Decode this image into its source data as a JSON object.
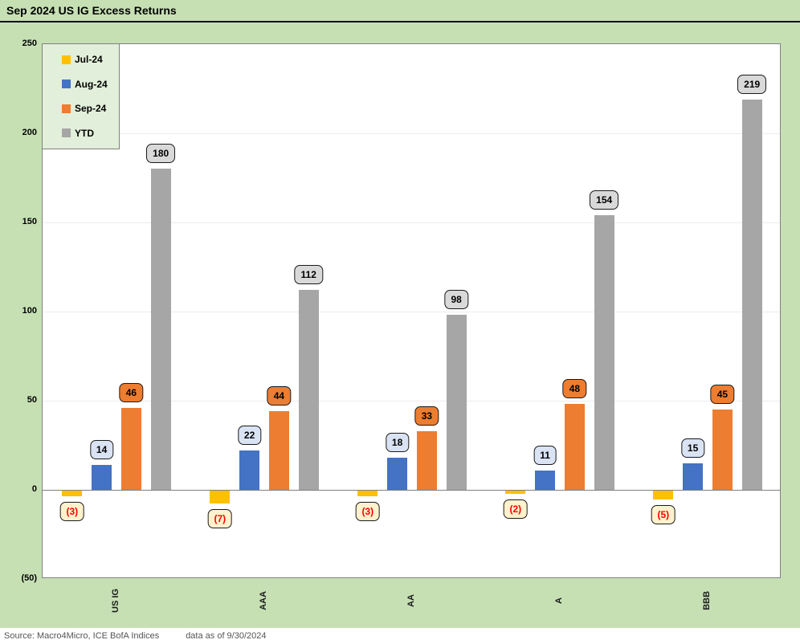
{
  "title": "Sep 2024 US IG Excess Returns",
  "footer": {
    "source": "Source: Macro4Micro, ICE BofA Indices",
    "as_of": "data as of 9/30/2024"
  },
  "colors": {
    "page_background": "#c6e0b4",
    "plot_background": "#ffffff",
    "legend_background": "#e2efda",
    "plot_border": "#808080",
    "gridline": "#ececec",
    "zero_axis": "#7f7f7f",
    "negative_label_text": "#ff0000",
    "negative_label_bg": "#fff2cc"
  },
  "chart_data": {
    "type": "bar",
    "title": "Sep 2024 US IG Excess Returns",
    "categories": [
      "US IG",
      "AAA",
      "AA",
      "A",
      "BBB"
    ],
    "series": [
      {
        "name": "Jul-24",
        "color": "#ffc000",
        "label_bg": "#fff2cc",
        "label_text_color": "#ff0000",
        "values": [
          -3,
          -7,
          -3,
          -2,
          -5
        ],
        "labels": [
          "(3)",
          "(7)",
          "(3)",
          "(2)",
          "(5)"
        ]
      },
      {
        "name": "Aug-24",
        "color": "#4472c4",
        "label_bg": "#dae3f3",
        "label_text_color": "#000000",
        "values": [
          14,
          22,
          18,
          11,
          15
        ],
        "labels": [
          "14",
          "22",
          "18",
          "11",
          "15"
        ]
      },
      {
        "name": "Sep-24",
        "color": "#ed7d31",
        "label_bg": "#ed7d31",
        "label_text_color": "#000000",
        "values": [
          46,
          44,
          33,
          48,
          45
        ],
        "labels": [
          "46",
          "44",
          "33",
          "48",
          "45"
        ]
      },
      {
        "name": "YTD",
        "color": "#a6a6a6",
        "label_bg": "#d9d9d9",
        "label_text_color": "#000000",
        "values": [
          180,
          112,
          98,
          154,
          219
        ],
        "labels": [
          "180",
          "112",
          "98",
          "154",
          "219"
        ]
      }
    ],
    "ylim": [
      -50,
      250
    ],
    "ytick_interval": 50,
    "yticks": [
      250,
      200,
      150,
      100,
      50,
      0,
      -50
    ],
    "ytick_labels": [
      "250",
      "200",
      "150",
      "100",
      "50",
      "0",
      "(50)"
    ],
    "grid": true,
    "legend_position": "top-left",
    "xlabel": "",
    "ylabel": ""
  }
}
